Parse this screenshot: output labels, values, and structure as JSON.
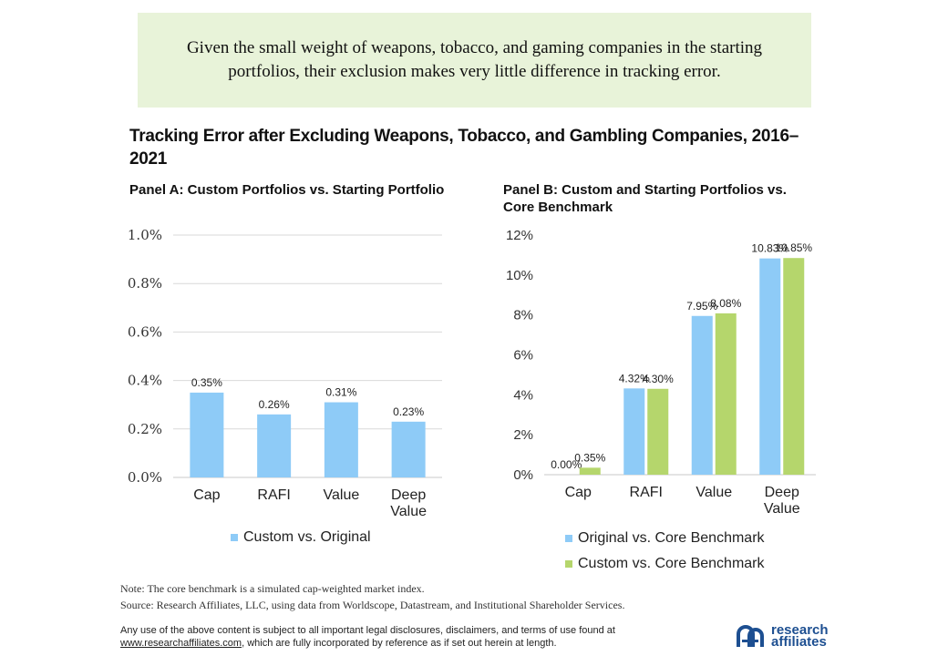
{
  "callout": {
    "text": "Given the small weight of weapons, tobacco, and gaming companies in the starting portfolios, their exclusion makes very little difference in tracking error."
  },
  "title": "Tracking Error after Excluding Weapons, Tobacco, and Gambling Companies, 2016–2021",
  "chart_data": [
    {
      "type": "bar",
      "title": "Panel A: Custom Portfolios vs. Starting Portfolio",
      "categories": [
        "Cap",
        "RAFI",
        "Value",
        "Deep Value"
      ],
      "series": [
        {
          "name": "Custom vs. Original",
          "values": [
            0.35,
            0.26,
            0.31,
            0.23
          ],
          "labels": [
            "0.35%",
            "0.26%",
            "0.31%",
            "0.23%"
          ],
          "color": "#8ecbf7"
        }
      ],
      "ylim": [
        0,
        1.0
      ],
      "yticks": [
        "0.0%",
        "0.2%",
        "0.4%",
        "0.6%",
        "0.8%",
        "1.0%"
      ],
      "grid": true,
      "legend": "bottom"
    },
    {
      "type": "bar",
      "title": "Panel B: Custom and Starting Portfolios vs. Core Benchmark",
      "categories": [
        "Cap",
        "RAFI",
        "Value",
        "Deep Value"
      ],
      "series": [
        {
          "name": "Original vs. Core Benchmark",
          "values": [
            0.0,
            4.32,
            7.95,
            10.83
          ],
          "labels": [
            "0.00%",
            "4.32%",
            "7.95%",
            "10.83%"
          ],
          "color": "#8ecbf7"
        },
        {
          "name": "Custom vs. Core Benchmark",
          "values": [
            0.35,
            4.3,
            8.08,
            10.85
          ],
          "labels": [
            "0.35%",
            "4.30%",
            "8.08%",
            "10.85%"
          ],
          "color": "#b5d66c"
        }
      ],
      "ylim": [
        0,
        12
      ],
      "yticks": [
        "0%",
        "2%",
        "4%",
        "6%",
        "8%",
        "10%",
        "12%"
      ],
      "grid": false,
      "legend": "bottom"
    }
  ],
  "notes": {
    "note": "Note: The core benchmark is a simulated cap-weighted market index.",
    "source": "Source: Research Affiliates, LLC, using data from Worldscope, Datastream, and Institutional Shareholder Services."
  },
  "disclaimer": {
    "line1": "Any use of the above content is subject to all important legal disclosures, disclaimers, and terms of use found at",
    "link": "www.researchaffiliates.com",
    "line2": ", which are fully incorporated by reference as if set out herein at length."
  },
  "logo": {
    "line1": "research",
    "line2": "affiliates",
    "icon": "ra-logo-icon",
    "color": "#1d4f91"
  }
}
